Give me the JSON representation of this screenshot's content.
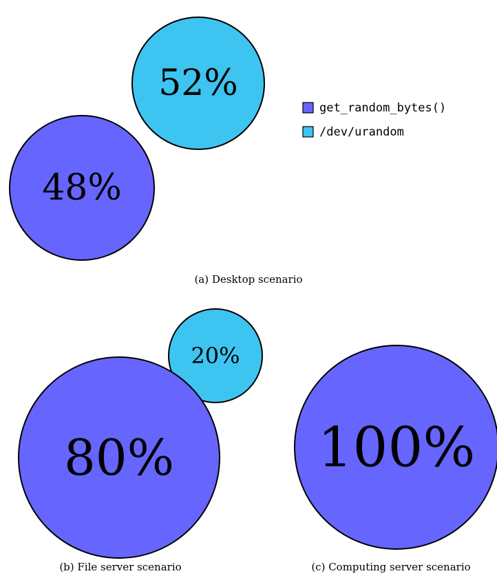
{
  "chart_data": [
    {
      "type": "bubble",
      "caption": "(a) Desktop scenario",
      "slices": [
        {
          "series": "/dev/urandom",
          "value": 52,
          "label": "52%"
        },
        {
          "series": "get_random_bytes()",
          "value": 48,
          "label": "48%"
        }
      ]
    },
    {
      "type": "bubble",
      "caption": "(b) File server scenario",
      "slices": [
        {
          "series": "/dev/urandom",
          "value": 20,
          "label": "20%"
        },
        {
          "series": "get_random_bytes()",
          "value": 80,
          "label": "80%"
        }
      ]
    },
    {
      "type": "bubble",
      "caption": "(c) Computing server scenario",
      "slices": [
        {
          "series": "get_random_bytes()",
          "value": 100,
          "label": "100%"
        }
      ]
    }
  ],
  "legend": {
    "placement": "right of chart (a)",
    "entries": [
      {
        "label": "get_random_bytes()",
        "color": "#6666ff"
      },
      {
        "label": "/dev/urandom",
        "color": "#3ec4f0"
      }
    ]
  },
  "colors": {
    "get_random_bytes()": "#6666ff",
    "/dev/urandom": "#3ec4f0",
    "outline": "#000000"
  }
}
